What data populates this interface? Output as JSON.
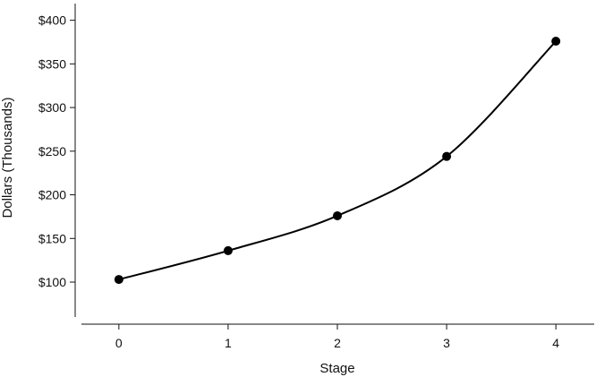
{
  "chart_data": {
    "type": "line",
    "title": "",
    "xlabel": "Stage",
    "ylabel": "Dollars (Thousands)",
    "x": [
      0,
      1,
      2,
      3,
      4
    ],
    "x_tick_labels": [
      "0",
      "1",
      "2",
      "3",
      "4"
    ],
    "y_tick_values": [
      100,
      150,
      200,
      250,
      300,
      350,
      400
    ],
    "y_tick_labels": [
      "$100",
      "$150",
      "$200",
      "$250",
      "$300",
      "$350",
      "$400"
    ],
    "xlim": [
      -0.4,
      4.4
    ],
    "ylim": [
      60,
      415
    ],
    "series": [
      {
        "values": [
          103,
          136,
          176,
          244,
          376
        ],
        "color": "#000000",
        "smooth": true
      }
    ],
    "grid": false,
    "legend": "none"
  }
}
